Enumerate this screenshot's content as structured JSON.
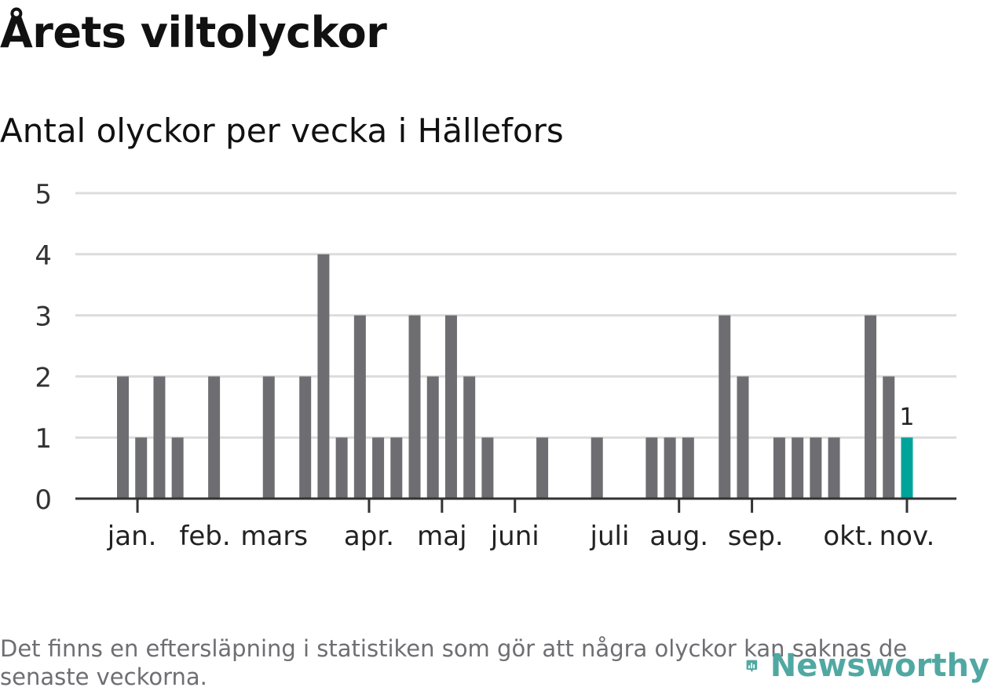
{
  "chart_data": {
    "type": "bar",
    "title": "Årets viltolyckor",
    "subtitle": "Antal olyckor per vecka i Hällefors",
    "xlabel": "",
    "ylabel": "",
    "ylim": [
      0,
      5
    ],
    "yticks": [
      "0",
      "1",
      "2",
      "3",
      "4",
      "5"
    ],
    "week_range": [
      1,
      45
    ],
    "values": [
      2,
      1,
      2,
      1,
      0,
      2,
      0,
      0,
      2,
      0,
      2,
      4,
      1,
      3,
      1,
      1,
      3,
      2,
      3,
      2,
      1,
      0,
      0,
      1,
      0,
      0,
      1,
      0,
      0,
      1,
      1,
      1,
      0,
      3,
      2,
      0,
      1,
      1,
      1,
      1,
      0,
      3,
      2,
      1
    ],
    "highlight_last": true,
    "last_value_label": "1",
    "month_labels": [
      {
        "label": "jan.",
        "week": 1.5
      },
      {
        "label": "feb.",
        "week": 5.5
      },
      {
        "label": "mars",
        "week": 9.3
      },
      {
        "label": "apr.",
        "week": 14.5
      },
      {
        "label": "maj",
        "week": 18.5
      },
      {
        "label": "juni",
        "week": 22.5
      },
      {
        "label": "juli",
        "week": 27.7
      },
      {
        "label": "aug.",
        "week": 31.5
      },
      {
        "label": "sep.",
        "week": 35.7
      },
      {
        "label": "okt.",
        "week": 40.8
      },
      {
        "label": "nov.",
        "week": 44.0
      }
    ],
    "month_ticks": [
      1.8,
      14.5,
      18.5,
      22.5,
      31.5,
      35.5,
      44.0
    ],
    "colors": {
      "bar": "#6e6d72",
      "highlight": "#00a39a",
      "grid": "#dcdcdc",
      "axis": "#333333"
    }
  },
  "footer": {
    "note": "Det finns en eftersläpning i statistiken som gör att några olyckor kan saknas de senaste veckorna.",
    "brand": "Newsworthy"
  }
}
